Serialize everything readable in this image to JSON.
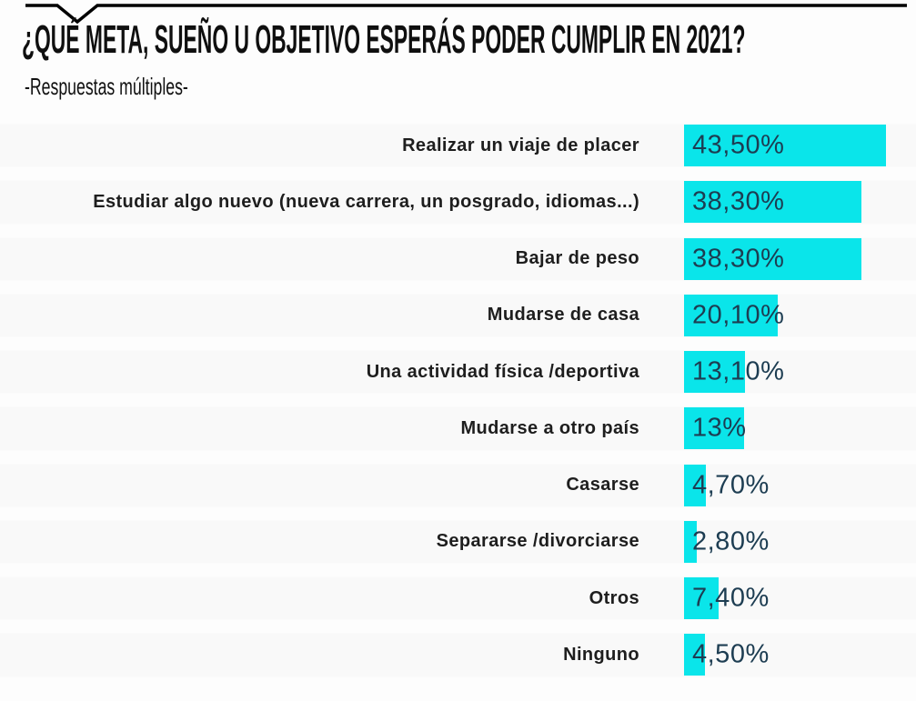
{
  "header": {
    "title": "¿QUÉ META, SUEÑO U OBJETIVO ESPERÁS PODER CUMPLIR EN 2021?",
    "subtitle": "-Respuestas múltiples-"
  },
  "chart_data": {
    "type": "bar",
    "orientation": "horizontal",
    "title": "¿QUÉ META, SUEÑO U OBJETIVO ESPERÁS PODER CUMPLIR EN 2021?",
    "subtitle": "-Respuestas múltiples-",
    "categories": [
      "Realizar un viaje de placer",
      "Estudiar algo nuevo (nueva carrera, un posgrado, idiomas...)",
      "Bajar de peso",
      "Mudarse de casa",
      "Una actividad física /deportiva",
      "Mudarse a otro país",
      "Casarse",
      "Separarse /divorciarse",
      "Otros",
      "Ninguno"
    ],
    "values": [
      43.5,
      38.3,
      38.3,
      20.1,
      13.1,
      13,
      4.7,
      2.8,
      7.4,
      4.5
    ],
    "value_labels": [
      "43,50%",
      "38,30%",
      "38,30%",
      "20,10%",
      "13,10%",
      "13%",
      "4,70%",
      "2,80%",
      "7,40%",
      "4,50%"
    ],
    "xlabel": "",
    "ylabel": "",
    "xlim": [
      0,
      50
    ],
    "grid": false,
    "legend": false,
    "value_label_position": "inside-start",
    "style": {
      "bar_color": "#0ae5ea",
      "value_text_color": "#1d3d52",
      "category_text_color": "#1e1e1e",
      "title_color": "#0f0f0f",
      "top_line_color": "#000000"
    }
  }
}
